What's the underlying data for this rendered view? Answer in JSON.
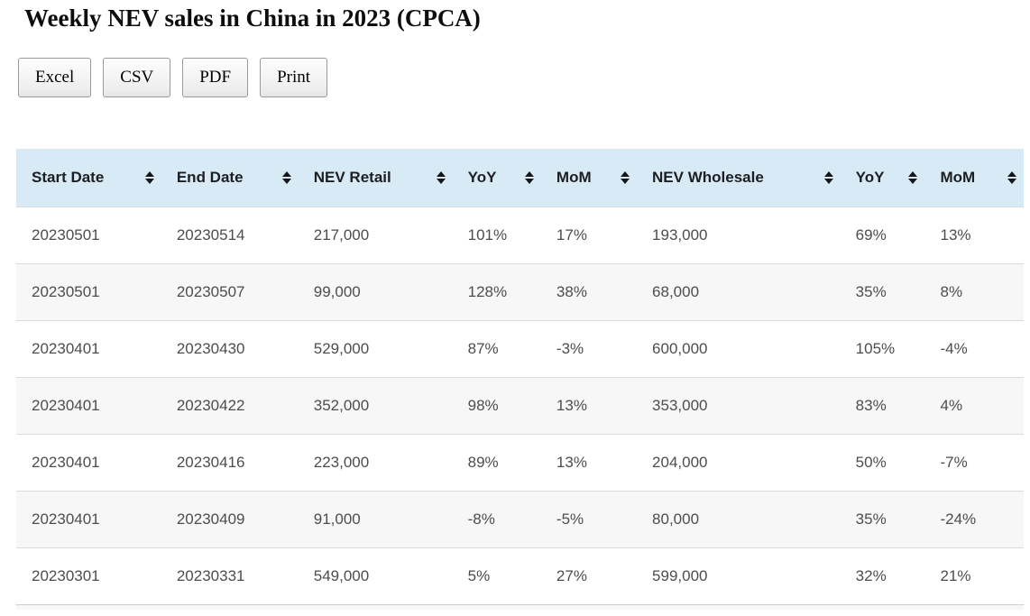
{
  "page": {
    "title": "Weekly NEV sales in China in 2023 (CPCA)"
  },
  "toolbar": {
    "buttons": [
      {
        "name": "excel-button",
        "label": "Excel"
      },
      {
        "name": "csv-button",
        "label": "CSV"
      },
      {
        "name": "pdf-button",
        "label": "PDF"
      },
      {
        "name": "print-button",
        "label": "Print"
      }
    ]
  },
  "table": {
    "columns": [
      {
        "id": "start-date",
        "label": "Start Date",
        "sortable": true
      },
      {
        "id": "end-date",
        "label": "End Date",
        "sortable": true
      },
      {
        "id": "nev-retail",
        "label": "NEV Retail",
        "sortable": true
      },
      {
        "id": "retail-yoy",
        "label": "YoY",
        "sortable": true
      },
      {
        "id": "retail-mom",
        "label": "MoM",
        "sortable": true
      },
      {
        "id": "nev-wholesale",
        "label": "NEV Wholesale",
        "sortable": true
      },
      {
        "id": "wholesale-yoy",
        "label": "YoY",
        "sortable": true
      },
      {
        "id": "wholesale-mom",
        "label": "MoM",
        "sortable": true
      }
    ],
    "rows": [
      [
        "20230501",
        "20230514",
        "217,000",
        "101%",
        "17%",
        "193,000",
        "69%",
        "13%"
      ],
      [
        "20230501",
        "20230507",
        "99,000",
        "128%",
        "38%",
        "68,000",
        "35%",
        "8%"
      ],
      [
        "20230401",
        "20230430",
        "529,000",
        "87%",
        "-3%",
        "600,000",
        "105%",
        "-4%"
      ],
      [
        "20230401",
        "20230422",
        "352,000",
        "98%",
        "13%",
        "353,000",
        "83%",
        "4%"
      ],
      [
        "20230401",
        "20230416",
        "223,000",
        "89%",
        "13%",
        "204,000",
        "50%",
        "-7%"
      ],
      [
        "20230401",
        "20230409",
        "91,000",
        "-8%",
        "-5%",
        "80,000",
        "35%",
        "-24%"
      ],
      [
        "20230301",
        "20230331",
        "549,000",
        "5%",
        "27%",
        "599,000",
        "32%",
        "21%"
      ]
    ]
  },
  "icons": {
    "sort": "sort-icon (up and down triangles)"
  },
  "colors": {
    "header_bg": "#d8eaf5",
    "alt_row_bg": "#f7f7f7",
    "row_border": "#dcdcdc",
    "header_text": "#1c1e21",
    "cell_text": "#4d4d4d",
    "button_border": "#9a9a9a"
  }
}
